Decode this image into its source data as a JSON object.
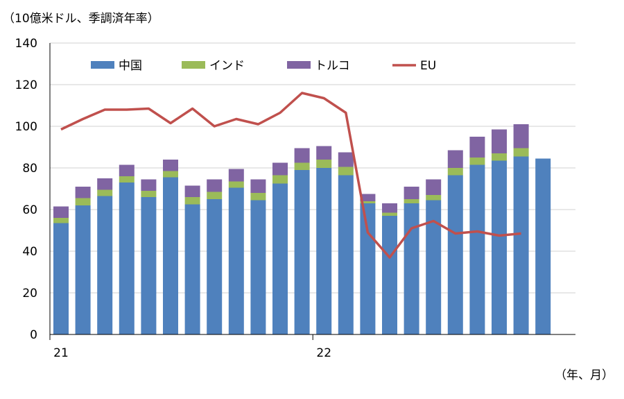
{
  "chart_data": {
    "type": "bar",
    "stacked": true,
    "unit_label": "（10億米ドル、季調済年率）",
    "xlabel": "（年、月）",
    "ylim": [
      0,
      140
    ],
    "yticks": [
      0,
      20,
      40,
      60,
      80,
      100,
      120,
      140
    ],
    "grid": true,
    "legend_position": "top",
    "x_year_labels": [
      {
        "index": 0,
        "label": "21"
      },
      {
        "index": 12,
        "label": "22"
      }
    ],
    "categories": [
      "2021-01",
      "2021-02",
      "2021-03",
      "2021-04",
      "2021-05",
      "2021-06",
      "2021-07",
      "2021-08",
      "2021-09",
      "2021-10",
      "2021-11",
      "2021-12",
      "2022-01",
      "2022-02",
      "2022-03",
      "2022-04",
      "2022-05",
      "2022-06",
      "2022-07",
      "2022-08",
      "2022-09",
      "2022-10",
      "2022-11"
    ],
    "series": [
      {
        "name": "中国",
        "kind": "bar",
        "color": "#4f81bd",
        "values": [
          53.5,
          62,
          66.5,
          73,
          66,
          75.5,
          62.5,
          65,
          70.5,
          64.5,
          72.5,
          79,
          80,
          76.5,
          63,
          57,
          63,
          64.5,
          76.5,
          81.5,
          83.5,
          85.5,
          84.5
        ]
      },
      {
        "name": "インド",
        "kind": "bar",
        "color": "#9bbb59",
        "values": [
          2.5,
          3.5,
          3,
          3,
          3,
          3,
          3.5,
          3.5,
          3,
          3.5,
          4,
          3.5,
          4,
          4,
          1,
          1.5,
          2,
          2.5,
          3.5,
          3.5,
          3.5,
          4,
          null
        ]
      },
      {
        "name": "トルコ",
        "kind": "bar",
        "color": "#8064a2",
        "values": [
          5.5,
          5.5,
          5.5,
          5.5,
          5.5,
          5.5,
          5.5,
          6,
          6,
          6.5,
          6,
          7,
          6.5,
          7,
          3.5,
          4.5,
          6,
          7.5,
          8.5,
          10,
          11.5,
          11.5,
          null
        ]
      },
      {
        "name": "EU",
        "kind": "line",
        "color": "#c0504d",
        "values": [
          98.5,
          103.5,
          108,
          108,
          108.5,
          101.5,
          108.5,
          100,
          103.5,
          101,
          106.5,
          116,
          113.5,
          106.5,
          49,
          37,
          51,
          54.5,
          48.5,
          49.5,
          47.5,
          48.5,
          null
        ]
      }
    ]
  }
}
